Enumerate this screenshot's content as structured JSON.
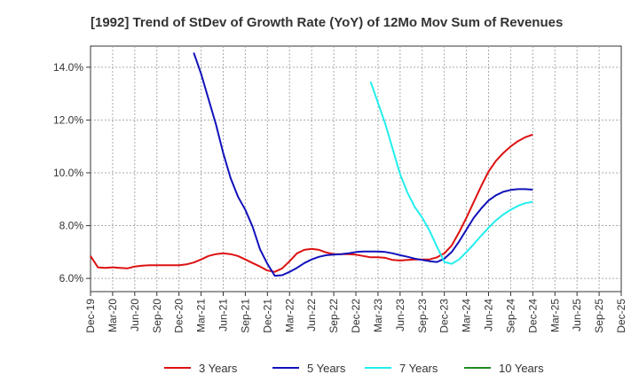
{
  "chart_data": {
    "type": "line",
    "title": "[1992]  Trend of StDev of Growth Rate (YoY) of 12Mo Mov Sum of Revenues",
    "xlabel": "",
    "ylabel": "",
    "ylim": [
      5.5,
      14.8
    ],
    "yticks": [
      6,
      8,
      10,
      12,
      14
    ],
    "ytick_labels": [
      "6.0%",
      "8.0%",
      "10.0%",
      "12.0%",
      "14.0%"
    ],
    "xtick_labels": [
      "Dec-19",
      "Mar-20",
      "Jun-20",
      "Sep-20",
      "Dec-20",
      "Mar-21",
      "Jun-21",
      "Sep-21",
      "Dec-21",
      "Mar-22",
      "Jun-22",
      "Sep-22",
      "Dec-22",
      "Mar-23",
      "Jun-23",
      "Sep-23",
      "Dec-23",
      "Mar-24",
      "Jun-24",
      "Sep-24",
      "Dec-24",
      "Mar-25",
      "Jun-25",
      "Sep-25",
      "Dec-25"
    ],
    "x_range_months": [
      0,
      72
    ],
    "grid": true,
    "legend_position": "bottom",
    "series": [
      {
        "name": "3 Years",
        "color": "#dd1111",
        "x": [
          0,
          1,
          2,
          3,
          4,
          5,
          6,
          7,
          8,
          9,
          10,
          11,
          12,
          13,
          14,
          15,
          16,
          17,
          18,
          19,
          20,
          21,
          22,
          23,
          24,
          25,
          26,
          27,
          28,
          29,
          30,
          31,
          32,
          33,
          34,
          35,
          36,
          37,
          38,
          39,
          40,
          41,
          42,
          43,
          44,
          45,
          46,
          47,
          48,
          49,
          50,
          51,
          52,
          53,
          54,
          55,
          56,
          57,
          58,
          59,
          60
        ],
        "values": [
          6.85,
          6.42,
          6.4,
          6.42,
          6.4,
          6.38,
          6.45,
          6.48,
          6.5,
          6.5,
          6.5,
          6.5,
          6.5,
          6.53,
          6.6,
          6.72,
          6.85,
          6.92,
          6.95,
          6.92,
          6.85,
          6.72,
          6.58,
          6.45,
          6.3,
          6.25,
          6.38,
          6.65,
          6.95,
          7.08,
          7.12,
          7.08,
          6.98,
          6.92,
          6.92,
          6.92,
          6.9,
          6.85,
          6.8,
          6.8,
          6.78,
          6.7,
          6.68,
          6.7,
          6.72,
          6.72,
          6.72,
          6.8,
          6.95,
          7.25,
          7.75,
          8.3,
          8.9,
          9.5,
          10.05,
          10.45,
          10.75,
          11.0,
          11.2,
          11.35,
          11.45
        ]
      },
      {
        "name": "5 Years",
        "color": "#1111bb",
        "x": [
          14,
          15,
          16,
          17,
          18,
          19,
          20,
          21,
          22,
          23,
          24,
          25,
          26,
          27,
          28,
          29,
          30,
          31,
          32,
          33,
          34,
          35,
          36,
          37,
          38,
          39,
          40,
          41,
          42,
          43,
          44,
          45,
          46,
          47,
          48,
          49,
          50,
          51,
          52,
          53,
          54,
          55,
          56,
          57,
          58,
          59,
          60
        ],
        "values": [
          14.55,
          13.75,
          12.8,
          11.85,
          10.75,
          9.8,
          9.1,
          8.6,
          7.95,
          7.1,
          6.55,
          6.1,
          6.12,
          6.25,
          6.4,
          6.58,
          6.72,
          6.82,
          6.88,
          6.9,
          6.92,
          6.95,
          7.0,
          7.02,
          7.02,
          7.02,
          7.0,
          6.95,
          6.88,
          6.82,
          6.75,
          6.7,
          6.65,
          6.62,
          6.75,
          7.0,
          7.4,
          7.85,
          8.3,
          8.65,
          8.95,
          9.15,
          9.28,
          9.35,
          9.38,
          9.38,
          9.36
        ]
      },
      {
        "name": "7 Years",
        "color": "#22eeee",
        "x": [
          38,
          39,
          40,
          41,
          42,
          43,
          44,
          45,
          46,
          47,
          48,
          49,
          50,
          51,
          52,
          53,
          54,
          55,
          56,
          57,
          58,
          59,
          60
        ],
        "values": [
          13.45,
          12.65,
          11.85,
          10.9,
          9.95,
          9.25,
          8.7,
          8.3,
          7.8,
          7.2,
          6.62,
          6.55,
          6.72,
          7.0,
          7.3,
          7.62,
          7.92,
          8.2,
          8.42,
          8.6,
          8.75,
          8.85,
          8.9
        ]
      },
      {
        "name": "10 Years",
        "color": "#228822",
        "x": [],
        "values": []
      }
    ]
  }
}
